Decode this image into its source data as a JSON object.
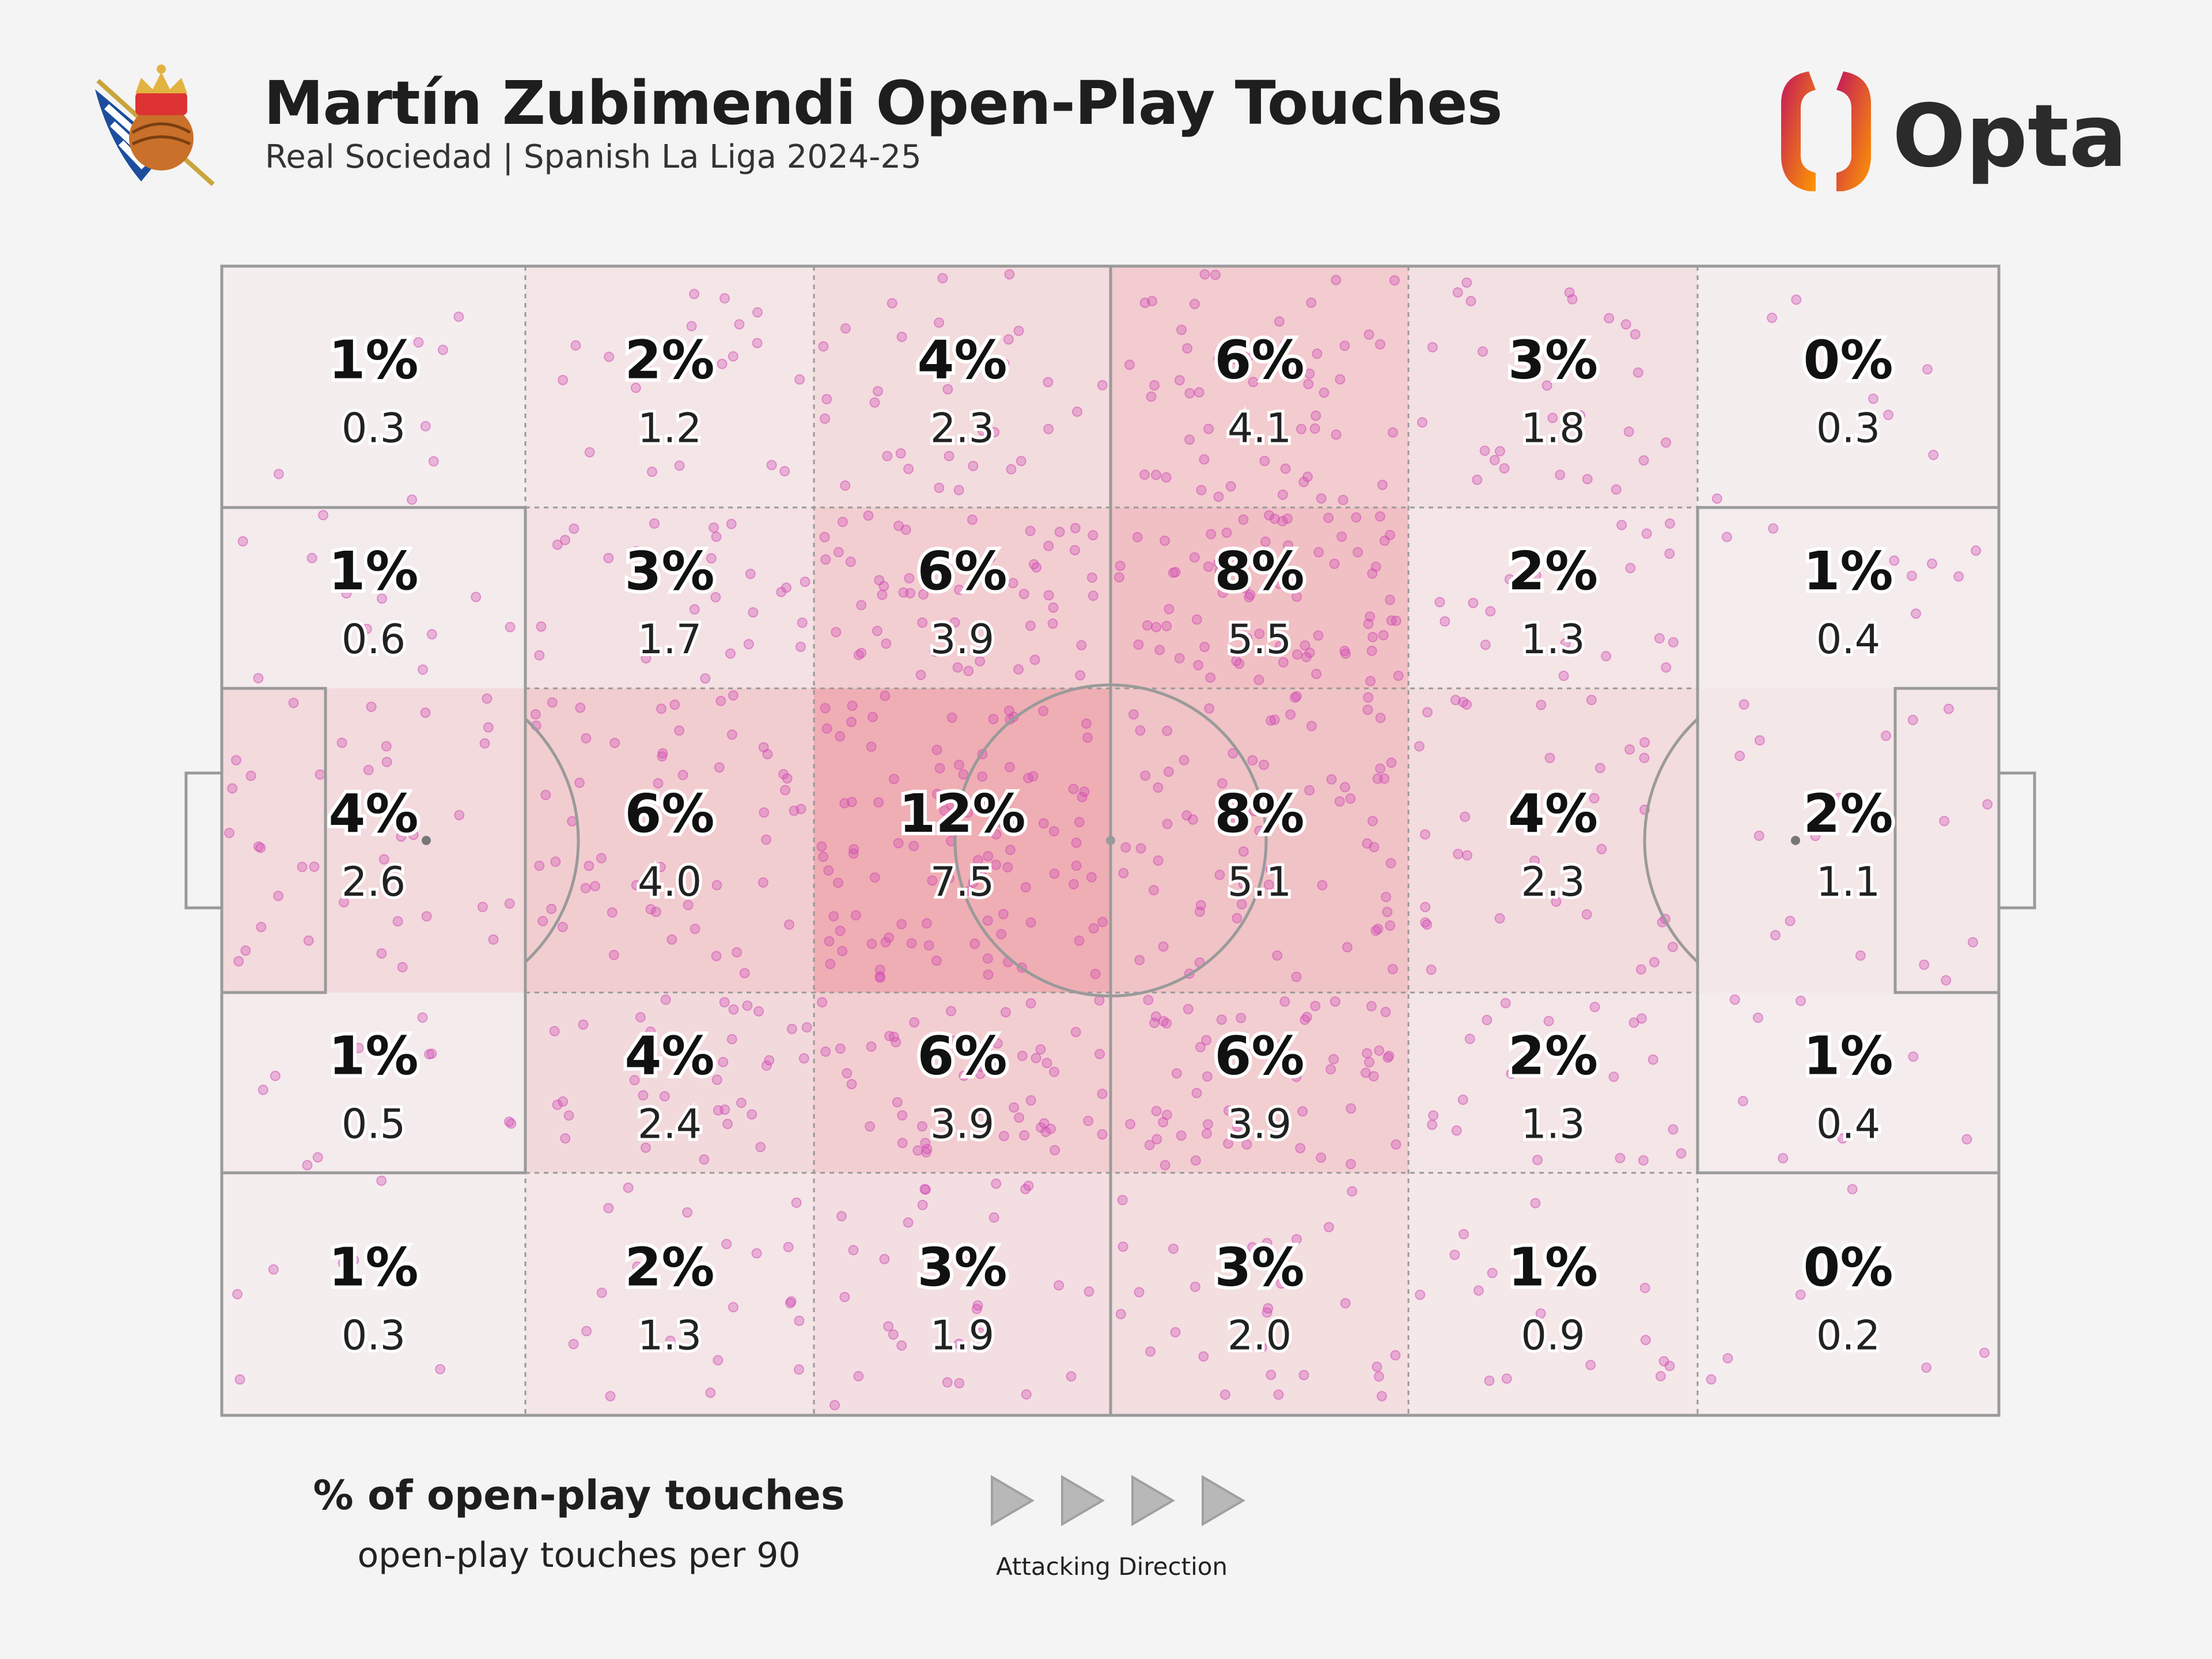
{
  "header": {
    "title": "Martín Zubimendi Open-Play Touches",
    "subtitle": "Real Sociedad | Spanish La Liga 2024-25"
  },
  "brand": {
    "logo_text": "Opta",
    "logo_gradient": [
      "#c2185b",
      "#ff9800"
    ],
    "text_color": "#2b2b2b"
  },
  "legend": {
    "primary": "% of open-play touches",
    "secondary": "open-play touches per 90",
    "direction": "Attacking Direction",
    "direction_icon": "play-triangle-icon"
  },
  "chart_data": {
    "type": "heatmap",
    "grid": "6 columns x 5 rows (positional zones)",
    "cell_color": "#e8707a",
    "dot_color": "#d04ab4",
    "rows": [
      {
        "pct": [
          "1%",
          "2%",
          "4%",
          "6%",
          "3%",
          "0%"
        ],
        "per90": [
          0.3,
          1.2,
          2.3,
          4.1,
          1.8,
          0.3
        ]
      },
      {
        "pct": [
          "1%",
          "3%",
          "6%",
          "8%",
          "2%",
          "1%"
        ],
        "per90": [
          0.6,
          1.7,
          3.9,
          5.5,
          1.3,
          0.4
        ]
      },
      {
        "pct": [
          "4%",
          "6%",
          "12%",
          "8%",
          "4%",
          "2%"
        ],
        "per90": [
          2.6,
          4.0,
          7.5,
          5.1,
          2.3,
          1.1
        ]
      },
      {
        "pct": [
          "1%",
          "4%",
          "6%",
          "6%",
          "2%",
          "1%"
        ],
        "per90": [
          0.5,
          2.4,
          3.9,
          3.9,
          1.3,
          0.4
        ]
      },
      {
        "pct": [
          "1%",
          "2%",
          "3%",
          "3%",
          "1%",
          "0%"
        ],
        "per90": [
          0.3,
          1.3,
          1.9,
          2.0,
          0.9,
          0.2
        ]
      }
    ]
  }
}
